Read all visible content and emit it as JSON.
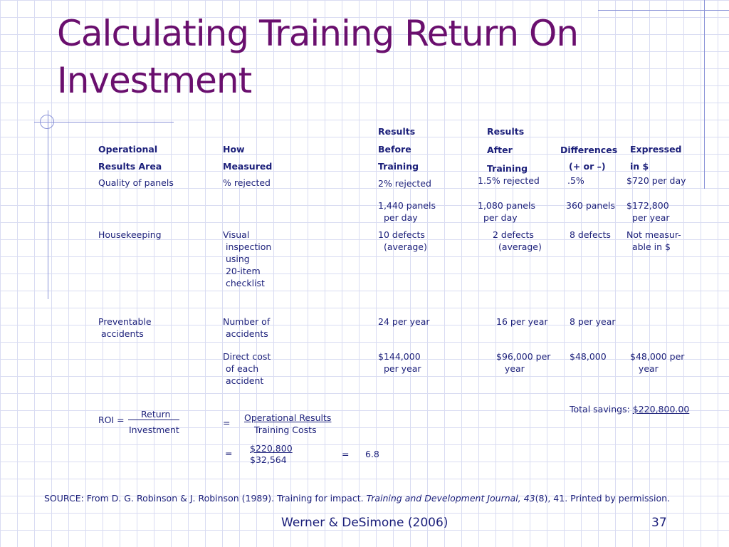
{
  "title": "Calculating Training Return On Investment",
  "headers": {
    "col1": [
      "Operational",
      "Results Area"
    ],
    "col2": [
      "How",
      "Measured"
    ],
    "col3": [
      "Results",
      "Before",
      "Training"
    ],
    "col4": [
      "Results",
      "After",
      "Training"
    ],
    "col5": [
      "Differences",
      "(+ or –)"
    ],
    "col6": [
      "Expressed",
      "in $"
    ]
  },
  "rows": {
    "quality": {
      "area": "Quality of panels",
      "how": "% rejected",
      "before1": "2% rejected",
      "after1": "1.5% rejected",
      "diff1": ".5%",
      "exp1": "$720 per day",
      "before2": "1,440 panels\n  per day",
      "after2": "1,080 panels\n  per day",
      "diff2": "360 panels",
      "exp2": "$172,800\n  per year"
    },
    "housekeeping": {
      "area": "Housekeeping",
      "how": "Visual\n inspection\n using\n 20-item\n checklist",
      "before": "10 defects\n  (average)",
      "after": "2 defects\n  (average)",
      "diff": "8 defects",
      "exp": "Not measur-\n  able in $"
    },
    "accidents": {
      "area": "Preventable\n accidents",
      "how1": "Number of\n accidents",
      "before1": "24 per year",
      "after1": "16 per year",
      "diff1": "8 per year",
      "how2": "Direct cost\n of each\n accident",
      "before2": "$144,000\n  per year",
      "after2": "$96,000 per\n   year",
      "diff2": "$48,000",
      "exp2": "$48,000 per\n   year"
    }
  },
  "total_savings": {
    "label": "Total savings: ",
    "value": "$220,800.00"
  },
  "roi": {
    "label": "ROI =",
    "numerator": "Return",
    "denominator": "Investment",
    "eq1": "=",
    "frac2_num": "Operational Results",
    "frac2_den": "Training Costs",
    "eq2": "=",
    "frac3_num": "$220,800",
    "frac3_den": "$32,564",
    "eq3": "=",
    "result": "6.8"
  },
  "source": {
    "prefix": "SOURCE: From D. G. Robinson & J. Robinson (1989). Training for impact. ",
    "journal": "Training and Development Journal, 43",
    "suffix": "(8), 41. Printed by permission."
  },
  "footer": "Werner & DeSimone (2006)",
  "page_number": "37"
}
